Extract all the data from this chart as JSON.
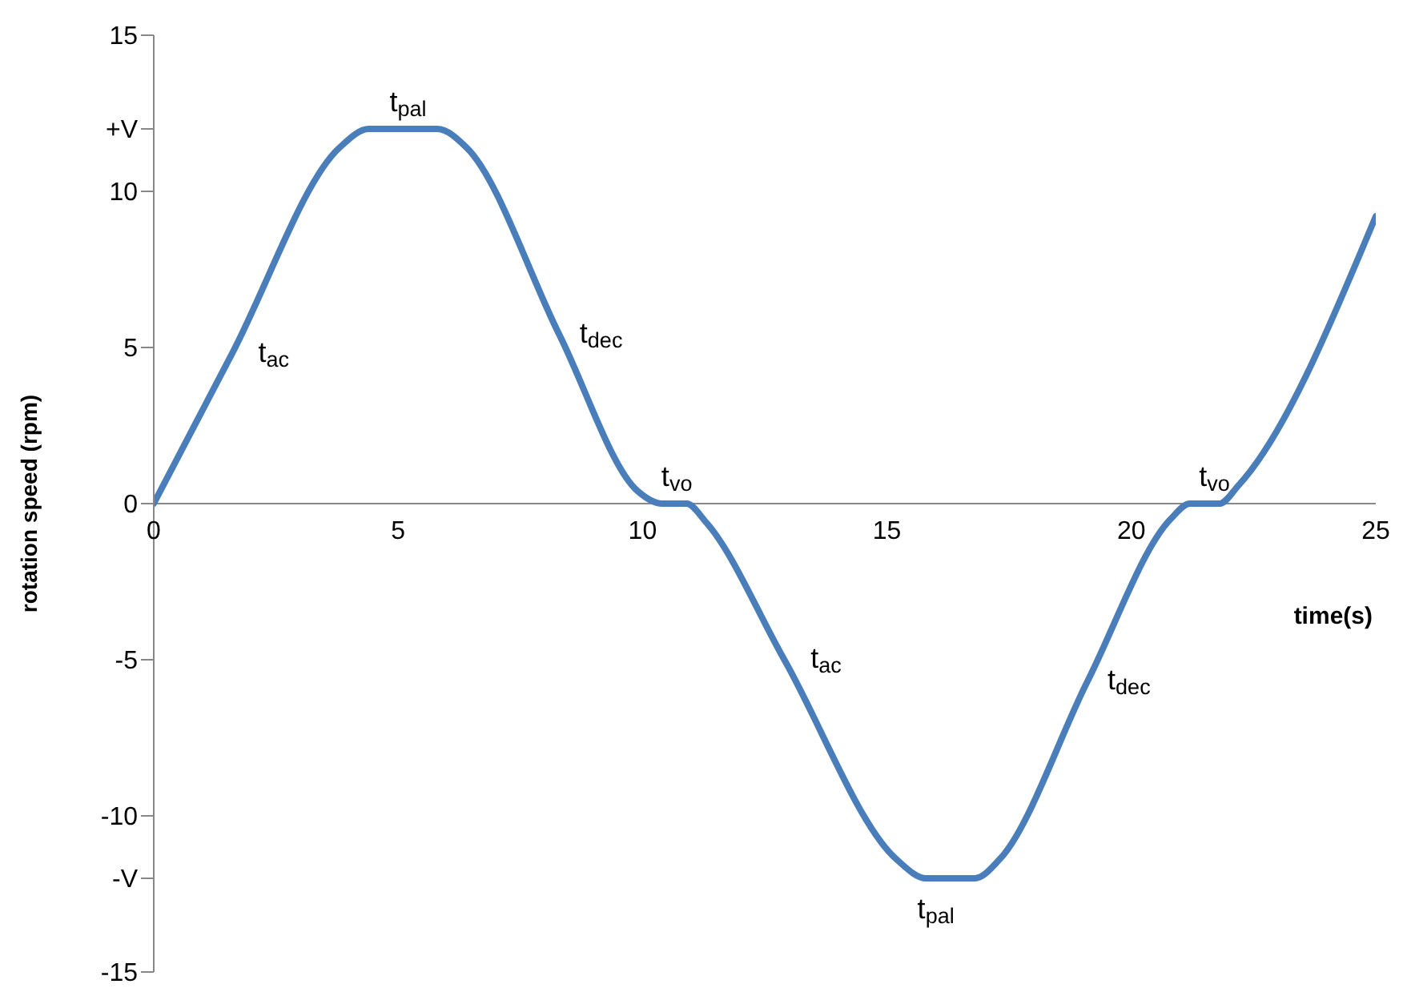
{
  "chart_data": {
    "type": "line",
    "xlabel": "time(s)",
    "ylabel": "rotation speed (rpm)",
    "x": [
      0,
      1.6,
      3.8,
      4.4,
      5.8,
      6.4,
      8.3,
      9.9,
      10.4,
      10.9,
      11.3,
      12.9,
      15.2,
      15.8,
      16.8,
      17.3,
      19.1,
      20.8,
      21.2,
      21.8,
      22.2,
      25
    ],
    "series": [
      {
        "color": "#4a7ebb",
        "values": [
          0,
          4.8,
          11.4,
          12,
          12,
          11.4,
          5.4,
          0.4,
          0,
          0,
          -0.6,
          -5,
          -11.4,
          -12,
          -12,
          -11.4,
          -5.7,
          -0.5,
          0,
          0,
          0.6,
          9.2
        ]
      }
    ],
    "xlim": [
      0,
      25
    ],
    "xticks": [
      0,
      5,
      10,
      15,
      20,
      25
    ],
    "ylim": [
      -15,
      15
    ],
    "yticks": [
      -15,
      {
        "value": -12,
        "label": "-V"
      },
      -10,
      -5,
      0,
      5,
      10,
      {
        "value": 12,
        "label": "+V"
      },
      15
    ],
    "grid": false,
    "legend": false,
    "marker": "none",
    "line_style": "solid",
    "annotations": [
      {
        "text": "t$_{ac}$",
        "x": 1.6,
        "y": 4.8
      },
      {
        "text": "t$_{pal}$",
        "x": 5.2,
        "y": 12
      },
      {
        "text": "t$_{dec}$",
        "x": 8.3,
        "y": 5.4
      },
      {
        "text": "t$_{vo}$",
        "x": 10.7,
        "y": 0
      },
      {
        "text": "t$_{ac}$",
        "x": 12.9,
        "y": -5
      },
      {
        "text": "t$_{pal}$",
        "x": 16,
        "y": -12
      },
      {
        "text": "t$_{dec}$",
        "x": 19.1,
        "y": -5.7
      },
      {
        "text": "t$_{vo}$",
        "x": 21.7,
        "y": 0
      }
    ]
  }
}
